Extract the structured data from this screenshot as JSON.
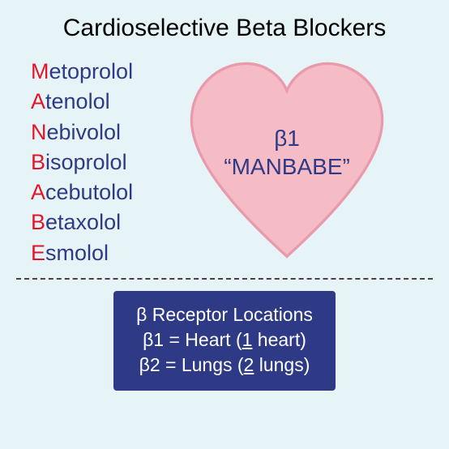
{
  "colors": {
    "background": "#e7f4f7",
    "title": "#000000",
    "accent": "#e3152a",
    "drugText": "#2f3a86",
    "heartFill": "#f6bcc6",
    "heartStroke": "#e99aac",
    "heartLabel": "#2f3a86",
    "divider": "#444444",
    "bannerBg": "#2f3a86",
    "bannerText": "#ffffff"
  },
  "typography": {
    "titleSize": 30,
    "drugSize": 27,
    "heartLabelSize": 28,
    "bannerSize": 23
  },
  "layout": {
    "heartWidth": 280,
    "heartHeight": 252,
    "dividerDashWidth": 2
  },
  "title": "Cardioselective Beta Blockers",
  "drugs": [
    {
      "first": "M",
      "rest": "etoprolol"
    },
    {
      "first": "A",
      "rest": "tenolol"
    },
    {
      "first": "N",
      "rest": "ebivolol"
    },
    {
      "first": "B",
      "rest": "isoprolol"
    },
    {
      "first": "A",
      "rest": "cebutolol"
    },
    {
      "first": "B",
      "rest": "etaxolol"
    },
    {
      "first": "E",
      "rest": "smolol"
    }
  ],
  "heart": {
    "line1": "β1",
    "line2": "“MANBABE”"
  },
  "banner": {
    "line1_a": "β Receptor Locations",
    "line2_a": "β1 = Heart (",
    "line2_u": "1",
    "line2_b": " heart)",
    "line3_a": "β2 = Lungs (",
    "line3_u": "2",
    "line3_b": " lungs)"
  }
}
